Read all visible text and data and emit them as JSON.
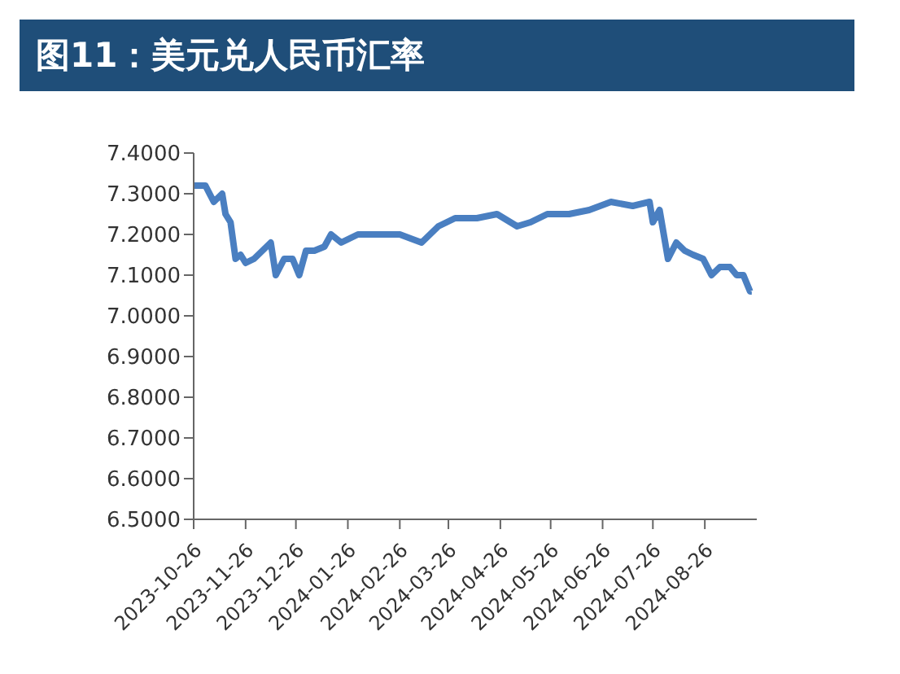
{
  "chart_data": {
    "type": "line",
    "title": "图11：美元兑人民币汇率",
    "x": [
      "2023-10-26",
      "2023-11-02",
      "2023-11-07",
      "2023-11-12",
      "2023-11-14",
      "2023-11-17",
      "2023-11-20",
      "2023-11-23",
      "2023-11-26",
      "2023-12-01",
      "2023-12-06",
      "2023-12-11",
      "2023-12-14",
      "2023-12-19",
      "2023-12-24",
      "2023-12-28",
      "2024-01-01",
      "2024-01-06",
      "2024-01-12",
      "2024-01-16",
      "2024-01-22",
      "2024-02-01",
      "2024-02-13",
      "2024-02-26",
      "2024-03-10",
      "2024-03-15",
      "2024-03-20",
      "2024-03-30",
      "2024-04-12",
      "2024-04-24",
      "2024-05-06",
      "2024-05-14",
      "2024-05-24",
      "2024-06-06",
      "2024-06-18",
      "2024-07-01",
      "2024-07-14",
      "2024-07-24",
      "2024-07-26",
      "2024-07-30",
      "2024-08-04",
      "2024-08-09",
      "2024-08-14",
      "2024-08-19",
      "2024-08-25",
      "2024-08-30",
      "2024-09-04",
      "2024-09-10",
      "2024-09-14",
      "2024-09-18",
      "2024-09-22",
      "2024-09-23"
    ],
    "series": [
      {
        "color": "#4a7fc1",
        "values": [
          7.32,
          7.32,
          7.28,
          7.3,
          7.25,
          7.23,
          7.14,
          7.15,
          7.13,
          7.14,
          7.16,
          7.18,
          7.1,
          7.14,
          7.14,
          7.1,
          7.16,
          7.16,
          7.17,
          7.2,
          7.18,
          7.2,
          7.2,
          7.2,
          7.18,
          7.2,
          7.22,
          7.24,
          7.24,
          7.25,
          7.22,
          7.23,
          7.25,
          7.25,
          7.26,
          7.28,
          7.27,
          7.28,
          7.23,
          7.26,
          7.14,
          7.18,
          7.16,
          7.15,
          7.14,
          7.1,
          7.12,
          7.12,
          7.1,
          7.1,
          7.06,
          7.06
        ]
      }
    ],
    "xlim": [
      "2023-10-26",
      "2024-09-26"
    ],
    "xticks": [
      "2023-10-26",
      "2023-11-26",
      "2023-12-26",
      "2024-01-26",
      "2024-02-26",
      "2024-03-26",
      "2024-04-26",
      "2024-05-26",
      "2024-06-26",
      "2024-07-26",
      "2024-08-26"
    ],
    "ylim": [
      6.5,
      7.4
    ],
    "yticks": [
      {
        "value": 6.5,
        "label": "6.5000"
      },
      {
        "value": 6.6,
        "label": "6.6000"
      },
      {
        "value": 6.7,
        "label": "6.7000"
      },
      {
        "value": 6.8,
        "label": "6.8000"
      },
      {
        "value": 6.9,
        "label": "6.9000"
      },
      {
        "value": 7.0,
        "label": "7.0000"
      },
      {
        "value": 7.1,
        "label": "7.1000"
      },
      {
        "value": 7.2,
        "label": "7.2000"
      },
      {
        "value": 7.3,
        "label": "7.3000"
      },
      {
        "value": 7.4,
        "label": "7.4000"
      }
    ],
    "line_style": "solid"
  }
}
